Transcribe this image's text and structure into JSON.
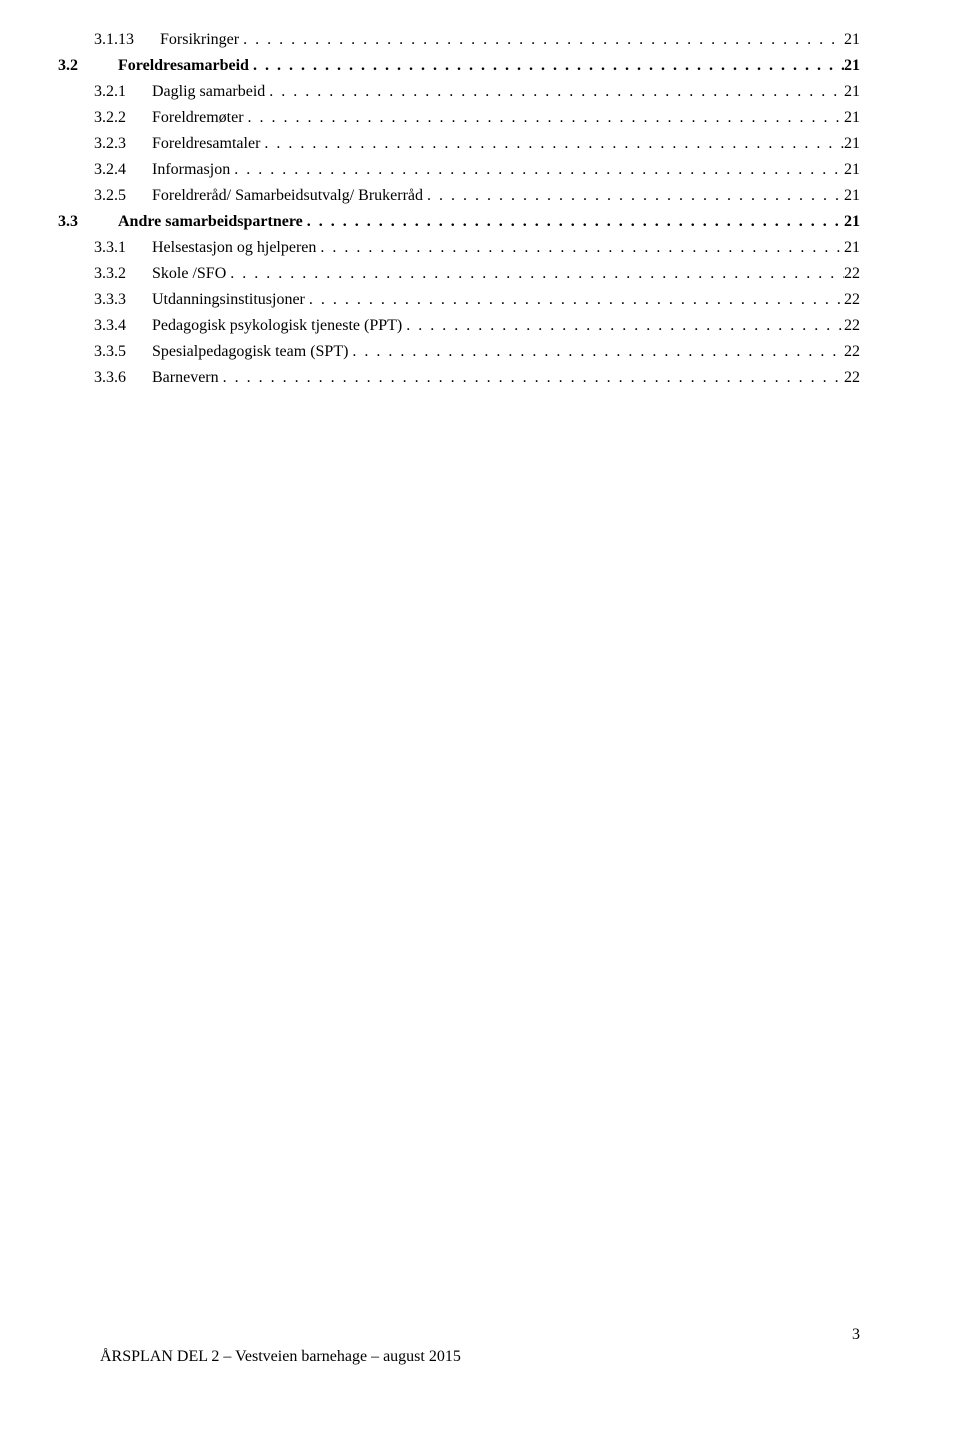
{
  "toc": [
    {
      "level": 3,
      "number": "3.1.13",
      "title": "Forsikringer",
      "page": "21",
      "bold": false
    },
    {
      "level": 2,
      "number": "3.2",
      "title": "Foreldresamarbeid",
      "page": "21",
      "bold": true
    },
    {
      "level": 3,
      "number": "3.2.1",
      "title": "Daglig samarbeid",
      "page": "21",
      "bold": false
    },
    {
      "level": 3,
      "number": "3.2.2",
      "title": "Foreldremøter",
      "page": "21",
      "bold": false
    },
    {
      "level": 3,
      "number": "3.2.3",
      "title": "Foreldresamtaler",
      "page": "21",
      "bold": false
    },
    {
      "level": 3,
      "number": "3.2.4",
      "title": "Informasjon",
      "page": "21",
      "bold": false
    },
    {
      "level": 3,
      "number": "3.2.5",
      "title": "Foreldreråd/ Samarbeidsutvalg/ Brukerråd",
      "page": "21",
      "bold": false
    },
    {
      "level": 2,
      "number": "3.3",
      "title": "Andre samarbeidspartnere",
      "page": "21",
      "bold": true
    },
    {
      "level": 3,
      "number": "3.3.1",
      "title": "Helsestasjon og hjelperen",
      "page": "21",
      "bold": false
    },
    {
      "level": 3,
      "number": "3.3.2",
      "title": "Skole /SFO",
      "page": "22",
      "bold": false
    },
    {
      "level": 3,
      "number": "3.3.3",
      "title": "Utdanningsinstitusjoner",
      "page": "22",
      "bold": false
    },
    {
      "level": 3,
      "number": "3.3.4",
      "title": "Pedagogisk psykologisk tjeneste (PPT)",
      "page": "22",
      "bold": false
    },
    {
      "level": 3,
      "number": "3.3.5",
      "title": "Spesialpedagogisk team (SPT)",
      "page": "22",
      "bold": false
    },
    {
      "level": 3,
      "number": "3.3.6",
      "title": "Barnevern",
      "page": "22",
      "bold": false
    }
  ],
  "footer_text": "ÅRSPLAN DEL 2 – Vestveien barnehage – august 2015",
  "page_number": "3",
  "dots_fill": ". . . . . . . . . . . . . . . . . . . . . . . . . . . . . . . . . . . . . . . . . . . . . . . . . . . . . . . . . . . . . . . . . . . . . . . . . . . . . . . . . . . . . . . . . . . . . . . . . . . . . . . . . . . . . . . . . . . . . . . . . . . . . . . . . . . . . . . . . . . . . . . . . . . . . . . . . . . . . . . . . . . . . . . . . . . . . . . . . . . . . . . . . . . . . . . . . . . . . . . . . . . . . . . . . . . . . . . . . . . . . . . . . . . . . . . . . . . . . . . . ."
}
